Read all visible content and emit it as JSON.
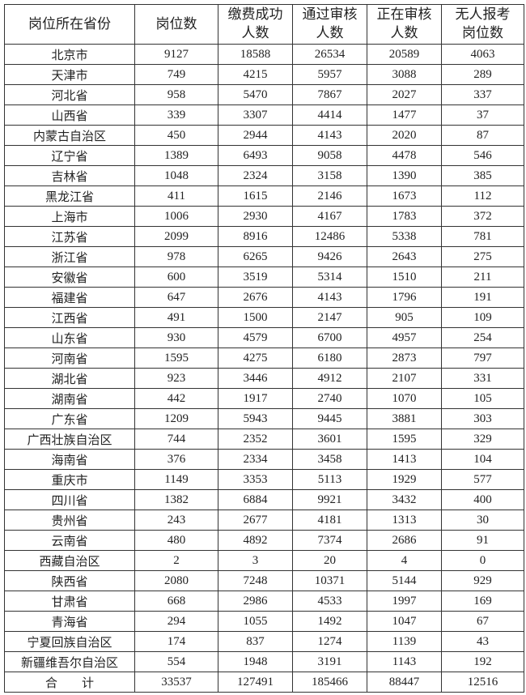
{
  "headers": [
    [
      "岗位所在省份"
    ],
    [
      "岗位数"
    ],
    [
      "缴费成功",
      "人数"
    ],
    [
      "通过审核",
      "人数"
    ],
    [
      "正在审核",
      "人数"
    ],
    [
      "无人报考",
      "岗位数"
    ]
  ],
  "rows": [
    [
      "北京市",
      "9127",
      "18588",
      "26534",
      "20589",
      "4063"
    ],
    [
      "天津市",
      "749",
      "4215",
      "5957",
      "3088",
      "289"
    ],
    [
      "河北省",
      "958",
      "5470",
      "7867",
      "2027",
      "337"
    ],
    [
      "山西省",
      "339",
      "3307",
      "4414",
      "1477",
      "37"
    ],
    [
      "内蒙古自治区",
      "450",
      "2944",
      "4143",
      "2020",
      "87"
    ],
    [
      "辽宁省",
      "1389",
      "6493",
      "9058",
      "4478",
      "546"
    ],
    [
      "吉林省",
      "1048",
      "2324",
      "3158",
      "1390",
      "385"
    ],
    [
      "黑龙江省",
      "411",
      "1615",
      "2146",
      "1673",
      "112"
    ],
    [
      "上海市",
      "1006",
      "2930",
      "4167",
      "1783",
      "372"
    ],
    [
      "江苏省",
      "2099",
      "8916",
      "12486",
      "5338",
      "781"
    ],
    [
      "浙江省",
      "978",
      "6265",
      "9426",
      "2643",
      "275"
    ],
    [
      "安徽省",
      "600",
      "3519",
      "5314",
      "1510",
      "211"
    ],
    [
      "福建省",
      "647",
      "2676",
      "4143",
      "1796",
      "191"
    ],
    [
      "江西省",
      "491",
      "1500",
      "2147",
      "905",
      "109"
    ],
    [
      "山东省",
      "930",
      "4579",
      "6700",
      "4957",
      "254"
    ],
    [
      "河南省",
      "1595",
      "4275",
      "6180",
      "2873",
      "797"
    ],
    [
      "湖北省",
      "923",
      "3446",
      "4912",
      "2107",
      "331"
    ],
    [
      "湖南省",
      "442",
      "1917",
      "2740",
      "1070",
      "105"
    ],
    [
      "广东省",
      "1209",
      "5943",
      "9445",
      "3881",
      "303"
    ],
    [
      "广西壮族自治区",
      "744",
      "2352",
      "3601",
      "1595",
      "329"
    ],
    [
      "海南省",
      "376",
      "2334",
      "3458",
      "1413",
      "104"
    ],
    [
      "重庆市",
      "1149",
      "3353",
      "5113",
      "1929",
      "577"
    ],
    [
      "四川省",
      "1382",
      "6884",
      "9921",
      "3432",
      "400"
    ],
    [
      "贵州省",
      "243",
      "2677",
      "4181",
      "1313",
      "30"
    ],
    [
      "云南省",
      "480",
      "4892",
      "7374",
      "2686",
      "91"
    ],
    [
      "西藏自治区",
      "2",
      "3",
      "20",
      "4",
      "0"
    ],
    [
      "陕西省",
      "2080",
      "7248",
      "10371",
      "5144",
      "929"
    ],
    [
      "甘肃省",
      "668",
      "2986",
      "4533",
      "1997",
      "169"
    ],
    [
      "青海省",
      "294",
      "1055",
      "1492",
      "1047",
      "67"
    ],
    [
      "宁夏回族自治区",
      "174",
      "837",
      "1274",
      "1139",
      "43"
    ],
    [
      "新疆维吾尔自治区",
      "554",
      "1948",
      "3191",
      "1143",
      "192"
    ],
    [
      "合　　计",
      "33537",
      "127491",
      "185466",
      "88447",
      "12516"
    ]
  ]
}
